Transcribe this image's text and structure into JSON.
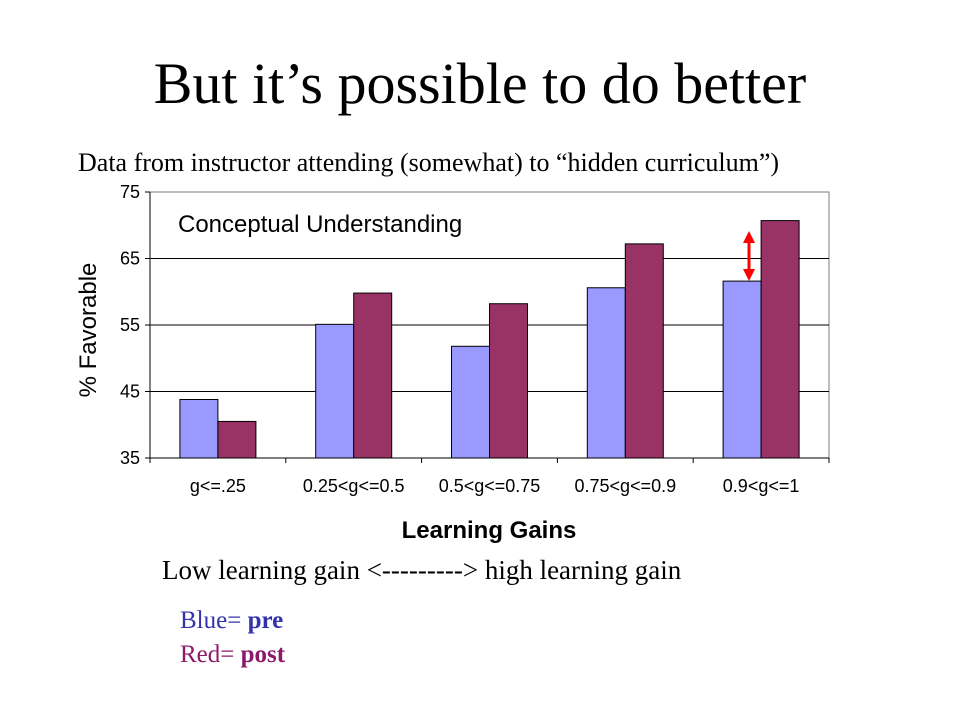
{
  "title": "But it’s possible to do better",
  "subtitle": "Data from instructor attending (somewhat) to “hidden curriculum”)",
  "range_caption": "Low learning gain  <---------> high learning gain",
  "legend_note": {
    "pre_prefix": "Blue= ",
    "pre_word": "pre",
    "post_prefix": "Red= ",
    "post_word": "post"
  },
  "chart_data": {
    "type": "bar",
    "title": "Conceptual Understanding",
    "xlabel": "Learning Gains",
    "ylabel": "% Favorable",
    "categories": [
      "g<=.25",
      "0.25<g<=0.5",
      "0.5<g<=0.75",
      "0.75<g<=0.9",
      "0.9<g<=1"
    ],
    "series": [
      {
        "values": [
          43.8,
          55.1,
          51.8,
          60.6,
          61.6
        ],
        "color": "#9999ff"
      },
      {
        "values": [
          40.5,
          59.8,
          58.2,
          67.2,
          70.7
        ],
        "color": "#993366"
      }
    ],
    "ylim": [
      35,
      75
    ],
    "yticks": [
      35,
      45,
      55,
      65,
      75
    ],
    "grid": true,
    "annotation": "red double-headed arrow marking gap between pre and post in the last group"
  }
}
